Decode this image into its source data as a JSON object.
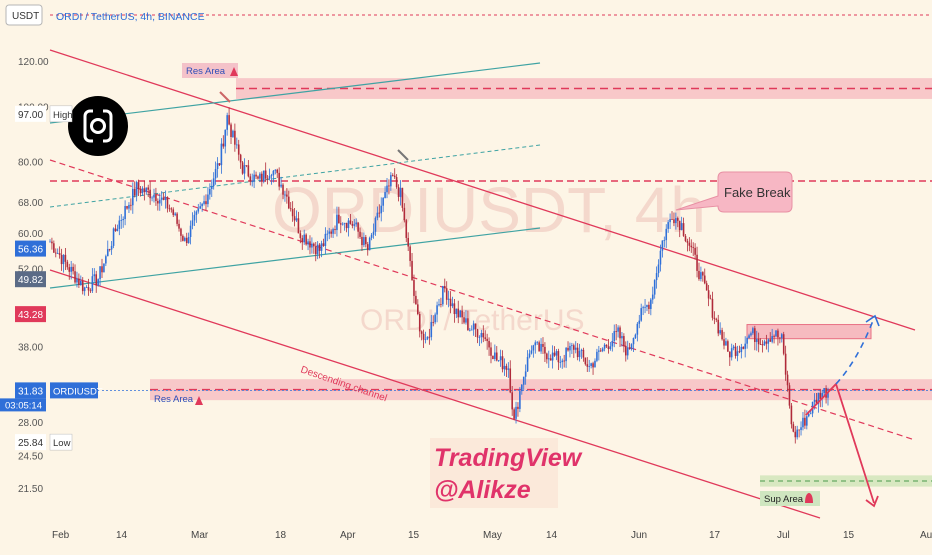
{
  "header": {
    "currency": "USDT",
    "symbol_line": "ORDI / TetherUS, 4h, BINANCE"
  },
  "watermark": {
    "big": "ORDIUSDT, 4h",
    "small": "ORDI / TetherUS"
  },
  "logo": {
    "icon": "ordi-logo-icon"
  },
  "colors": {
    "bull": "#2f6fd8",
    "bear": "#b02a3a",
    "channel": "#e0395a",
    "teal": "#3fa3a3",
    "zone": "#f4a3b0",
    "background": "#fdf5e6"
  },
  "chart_data": {
    "type": "candlestick",
    "y_scale": "log",
    "ylim": [
      19.5,
      128
    ],
    "x_ticks": [
      "Feb",
      "14",
      "Mar",
      "18",
      "Apr",
      "15",
      "May",
      "14",
      "Jun",
      "17",
      "Jul",
      "15",
      "Aug"
    ],
    "y_ticks": [
      "120.00",
      "100.00",
      "97.00",
      "80.00",
      "68.00",
      "60.00",
      "56.36",
      "52.00",
      "49.82",
      "43.28",
      "38.00",
      "31.83",
      "28.00",
      "25.84",
      "24.50",
      "21.50"
    ],
    "price_keypoints": [
      [
        0,
        58
      ],
      [
        10,
        52
      ],
      [
        18,
        48
      ],
      [
        25,
        50
      ],
      [
        35,
        62
      ],
      [
        45,
        72
      ],
      [
        55,
        70
      ],
      [
        63,
        66
      ],
      [
        70,
        58
      ],
      [
        80,
        68
      ],
      [
        88,
        80
      ],
      [
        92,
        96
      ],
      [
        95,
        88
      ],
      [
        100,
        78
      ],
      [
        108,
        74
      ],
      [
        115,
        78
      ],
      [
        122,
        71
      ],
      [
        130,
        60
      ],
      [
        140,
        56
      ],
      [
        150,
        64
      ],
      [
        158,
        62
      ],
      [
        165,
        56
      ],
      [
        172,
        67
      ],
      [
        178,
        75
      ],
      [
        182,
        70
      ],
      [
        186,
        56
      ],
      [
        190,
        44
      ],
      [
        195,
        38
      ],
      [
        200,
        44
      ],
      [
        205,
        48
      ],
      [
        210,
        44
      ],
      [
        218,
        41
      ],
      [
        225,
        40
      ],
      [
        232,
        36
      ],
      [
        238,
        35
      ],
      [
        241,
        28
      ],
      [
        245,
        33
      ],
      [
        250,
        38
      ],
      [
        258,
        37
      ],
      [
        265,
        36
      ],
      [
        272,
        38
      ],
      [
        280,
        35
      ],
      [
        288,
        38
      ],
      [
        295,
        40
      ],
      [
        300,
        37
      ],
      [
        305,
        42
      ],
      [
        312,
        46
      ],
      [
        318,
        58
      ],
      [
        323,
        65
      ],
      [
        328,
        62
      ],
      [
        334,
        55
      ],
      [
        340,
        48
      ],
      [
        346,
        42
      ],
      [
        352,
        37
      ],
      [
        358,
        38
      ],
      [
        364,
        40
      ],
      [
        370,
        39
      ],
      [
        376,
        40
      ],
      [
        380,
        39
      ],
      [
        384,
        30
      ],
      [
        386,
        26.5
      ],
      [
        390,
        27.5
      ],
      [
        395,
        29.5
      ],
      [
        400,
        31.5
      ],
      [
        404,
        31.8
      ]
    ],
    "labels": {
      "high": {
        "text": "High",
        "value": "97.00"
      },
      "low": {
        "text": "Low",
        "value": "25.84"
      },
      "last_price": {
        "name": "ORDIUSDT",
        "value": "31.83",
        "countdown": "03:05:14"
      },
      "blue_mark": "56.36",
      "grey_mark": "49.82",
      "red_mark": "43.28"
    },
    "annotations": {
      "res_area_top": "Res Area",
      "res_area_mid": "Res Area",
      "sup_area": "Sup Area",
      "fake_break": "Fake Break",
      "channel_label": "Descending channel",
      "signature_line1": "TradingView",
      "signature_line2": "@Alikze"
    },
    "grid": false
  }
}
